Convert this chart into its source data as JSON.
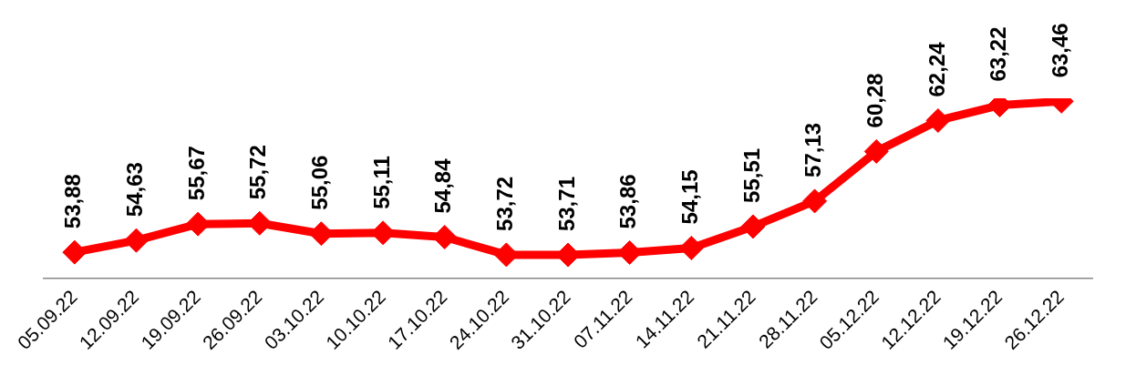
{
  "chart_data": {
    "type": "line",
    "categories": [
      "05.09.22",
      "12.09.22",
      "19.09.22",
      "26.09.22",
      "03.10.22",
      "10.10.22",
      "17.10.22",
      "24.10.22",
      "31.10.22",
      "07.11.22",
      "14.11.22",
      "21.11.22",
      "28.11.22",
      "05.12.22",
      "12.12.22",
      "19.12.22",
      "26.12.22"
    ],
    "series": [
      {
        "color": "#ff0000",
        "values": [
          53.88,
          54.63,
          55.67,
          55.72,
          55.06,
          55.11,
          54.84,
          53.72,
          53.71,
          53.86,
          54.15,
          55.51,
          57.13,
          60.28,
          62.24,
          63.22,
          63.46
        ],
        "value_labels": [
          "53,88",
          "54,63",
          "55,67",
          "55,72",
          "55,06",
          "55,11",
          "54,84",
          "53,72",
          "53,71",
          "53,86",
          "54,15",
          "55,51",
          "57,13",
          "60,28",
          "62,24",
          "63,22",
          "63,46"
        ]
      }
    ],
    "marker": "diamond",
    "line_style": "solid",
    "grid": false,
    "legend": false,
    "tick_labels": "x"
  }
}
